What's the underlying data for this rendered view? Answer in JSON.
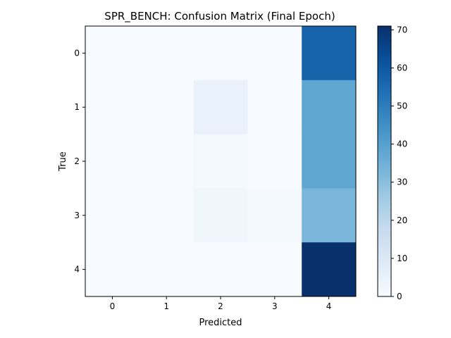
{
  "chart_data": {
    "type": "heatmap",
    "title": "SPR_BENCH: Confusion Matrix (Final Epoch)",
    "xlabel": "Predicted",
    "ylabel": "True",
    "x_tick_labels": [
      "0",
      "1",
      "2",
      "3",
      "4"
    ],
    "y_tick_labels": [
      "0",
      "1",
      "2",
      "3",
      "4"
    ],
    "matrix": [
      [
        0,
        0,
        0,
        0,
        57
      ],
      [
        0,
        0,
        5,
        0,
        38
      ],
      [
        0,
        0,
        1,
        0,
        38
      ],
      [
        0,
        0,
        3,
        1,
        33
      ],
      [
        0,
        0,
        0,
        0,
        71
      ]
    ],
    "colormap": "Blues",
    "vmin": 0,
    "vmax": 71,
    "colorbar_ticks": [
      0,
      10,
      20,
      30,
      40,
      50,
      60,
      70
    ],
    "grid": false
  }
}
